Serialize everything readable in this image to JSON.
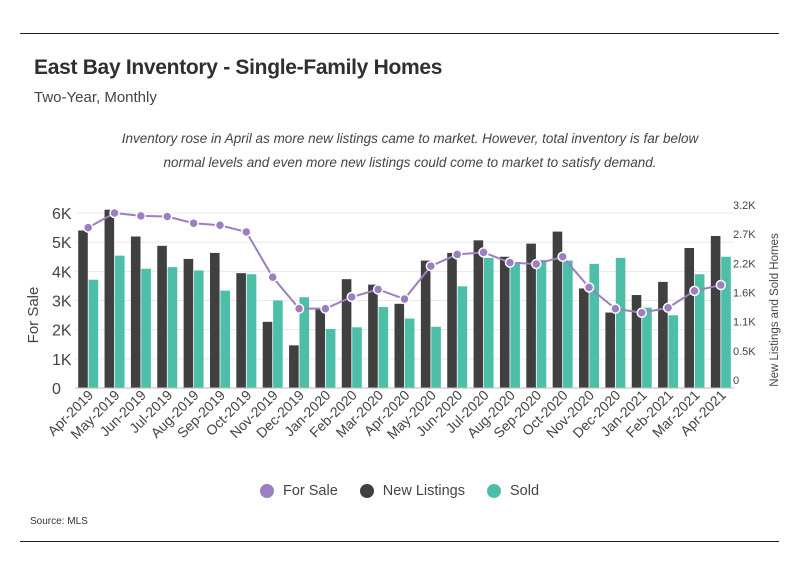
{
  "header": {
    "title": "East Bay Inventory - Single-Family Homes",
    "subtitle": "Two-Year, Monthly",
    "annotation": "Inventory rose in April as more new listings came to market. However, total inventory is far below normal levels and even more new listings could come to market to satisfy demand."
  },
  "source": "Source:  MLS",
  "chart_data": {
    "type": "bar",
    "categories": [
      "Apr-2019",
      "May-2019",
      "Jun-2019",
      "Jul-2019",
      "Aug-2019",
      "Sep-2019",
      "Oct-2019",
      "Nov-2019",
      "Dec-2019",
      "Jan-2020",
      "Feb-2020",
      "Mar-2020",
      "Apr-2020",
      "May-2020",
      "Jun-2020",
      "Jul-2020",
      "Aug-2020",
      "Sep-2020",
      "Oct-2020",
      "Nov-2020",
      "Dec-2020",
      "Jan-2021",
      "Feb-2021",
      "Mar-2021",
      "Apr-2021"
    ],
    "ylabel": "For Sale",
    "y2label": "New Listings and Sold Homes",
    "ylim": [
      0,
      6000
    ],
    "y2lim": [
      0,
      3200
    ],
    "yticks": [
      "0",
      "1K",
      "2K",
      "3K",
      "4K",
      "5K",
      "6K"
    ],
    "y2ticks": [
      "0",
      "0.5K",
      "1.1K",
      "1.6K",
      "2.2K",
      "2.7K",
      "3.2K"
    ],
    "series": [
      {
        "name": "New Listings",
        "type": "bar",
        "axis": "right",
        "color": "#404040",
        "values": [
          2880,
          3260,
          2770,
          2600,
          2360,
          2470,
          2100,
          1210,
          780,
          1450,
          1990,
          1890,
          1540,
          2330,
          2470,
          2700,
          2400,
          2640,
          2860,
          1820,
          1380,
          1700,
          1940,
          2560,
          2780
        ]
      },
      {
        "name": "Sold",
        "type": "bar",
        "axis": "right",
        "color": "#4dbfa8",
        "values": [
          1980,
          2420,
          2180,
          2210,
          2150,
          1780,
          2080,
          1600,
          1660,
          1080,
          1110,
          1480,
          1270,
          1120,
          1860,
          2380,
          2300,
          2340,
          2330,
          2270,
          2380,
          1470,
          1330,
          2080,
          2400
        ]
      },
      {
        "name": "For Sale",
        "type": "line",
        "axis": "left",
        "color": "#9b7fbf",
        "values": [
          5500,
          6000,
          5900,
          5880,
          5650,
          5580,
          5350,
          3800,
          2720,
          2720,
          3120,
          3380,
          3050,
          4180,
          4580,
          4650,
          4300,
          4250,
          4500,
          3450,
          2720,
          2580,
          2750,
          3330,
          3530
        ]
      }
    ],
    "legend_position": "bottom",
    "grid": false
  },
  "legend": [
    {
      "label": "For Sale",
      "color": "#9b7fbf"
    },
    {
      "label": "New Listings",
      "color": "#404040"
    },
    {
      "label": "Sold",
      "color": "#4dbfa8"
    }
  ]
}
